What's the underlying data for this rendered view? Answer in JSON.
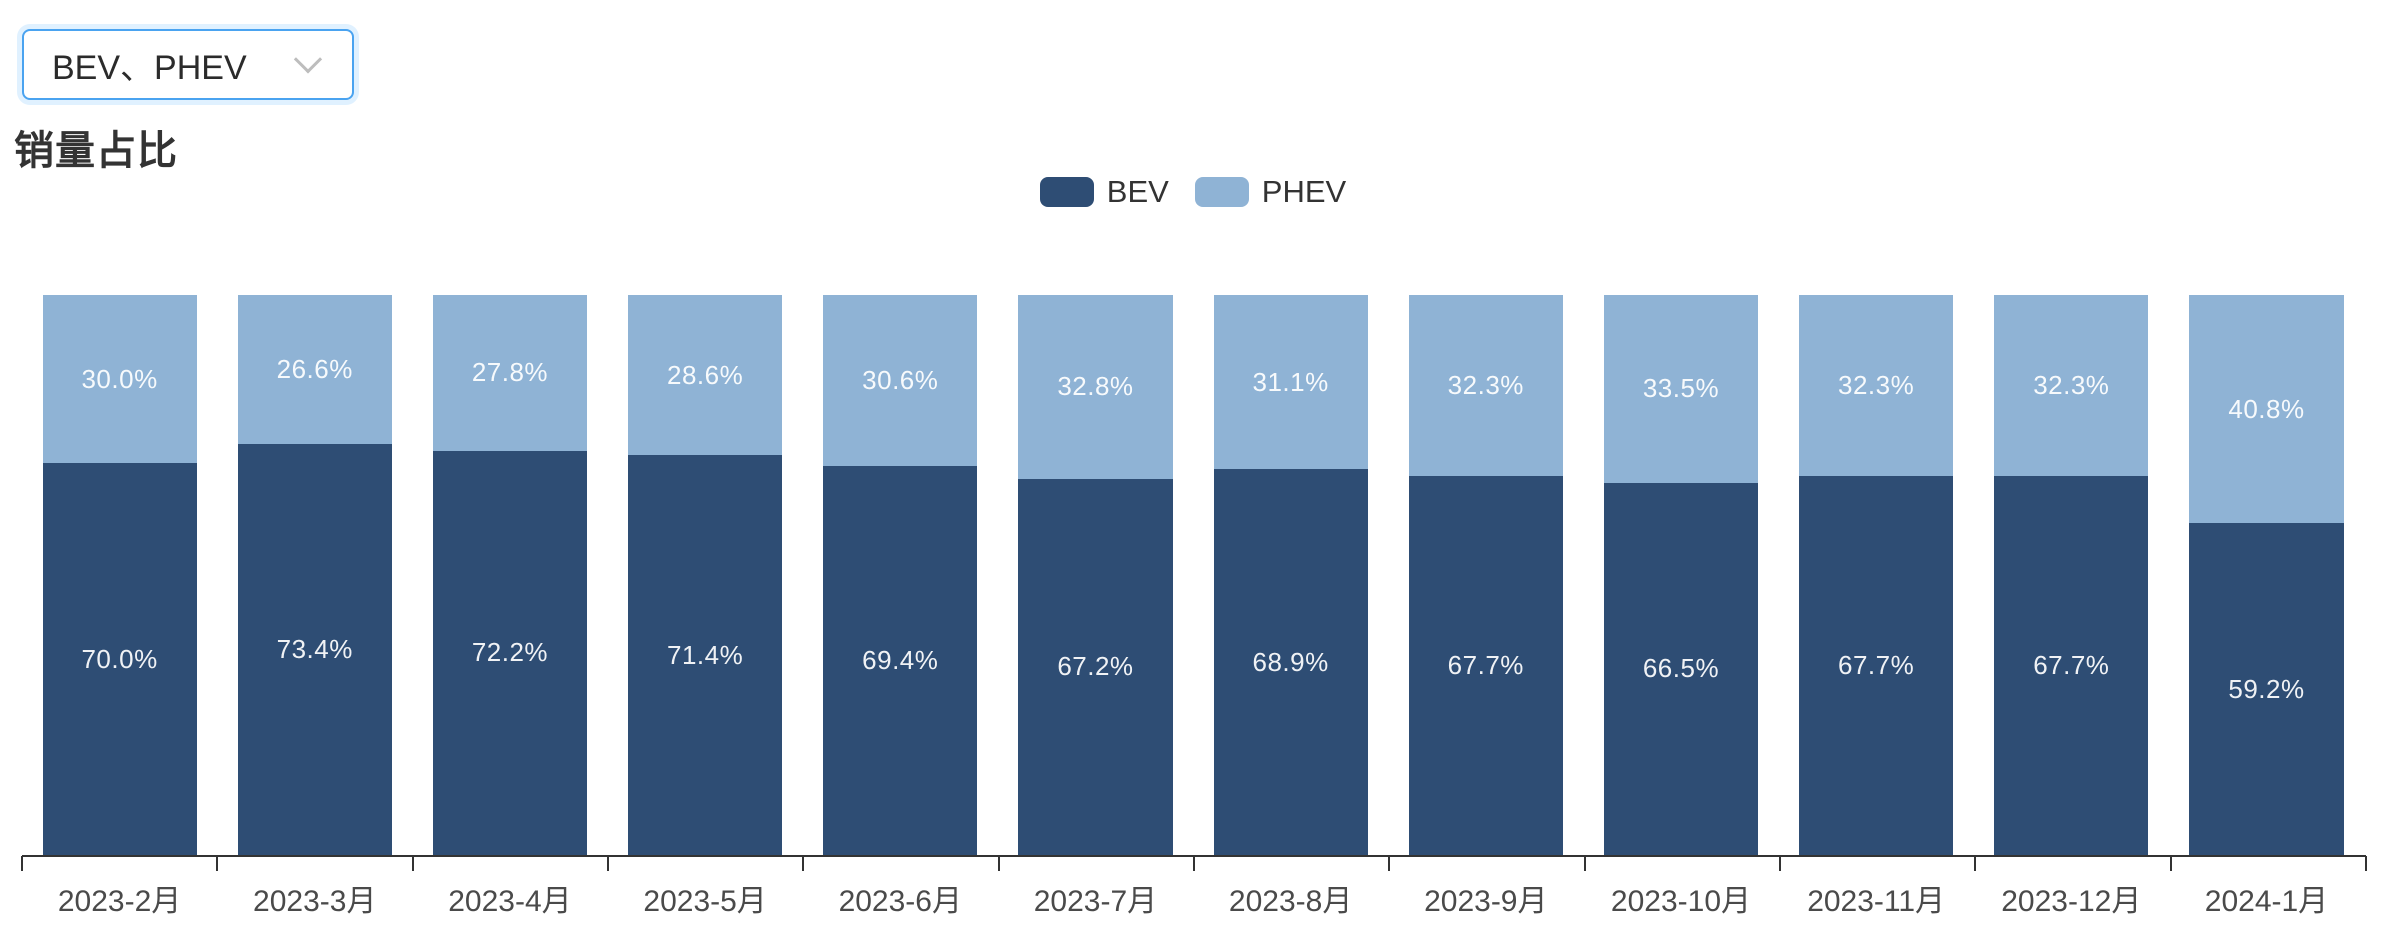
{
  "filter_select": {
    "value": "BEV、PHEV"
  },
  "page_title": "销量占比",
  "legend": {
    "items": [
      {
        "label": "BEV",
        "color": "#2e4d74"
      },
      {
        "label": "PHEV",
        "color": "#8fb3d5"
      }
    ]
  },
  "chart_data": {
    "type": "bar",
    "stacked": true,
    "stack_unit": "percent",
    "title": "销量占比",
    "categories": [
      "2023-2月",
      "2023-3月",
      "2023-4月",
      "2023-5月",
      "2023-6月",
      "2023-7月",
      "2023-8月",
      "2023-9月",
      "2023-10月",
      "2023-11月",
      "2023-12月",
      "2024-1月"
    ],
    "series": [
      {
        "name": "BEV",
        "color": "#2e4d74",
        "values": [
          70.0,
          73.4,
          72.2,
          71.4,
          69.4,
          67.2,
          68.9,
          67.7,
          66.5,
          67.7,
          67.7,
          59.2
        ]
      },
      {
        "name": "PHEV",
        "color": "#8fb3d5",
        "values": [
          30.0,
          26.6,
          27.8,
          28.6,
          30.6,
          32.8,
          31.1,
          32.3,
          33.5,
          32.3,
          32.3,
          40.8
        ]
      }
    ],
    "value_label_suffix": "%",
    "value_label_decimals": 1,
    "ylim": [
      0,
      100
    ],
    "grid": false,
    "legend_position": "top-center",
    "axis_color": "#333333",
    "value_label_color": "#ffffff"
  }
}
